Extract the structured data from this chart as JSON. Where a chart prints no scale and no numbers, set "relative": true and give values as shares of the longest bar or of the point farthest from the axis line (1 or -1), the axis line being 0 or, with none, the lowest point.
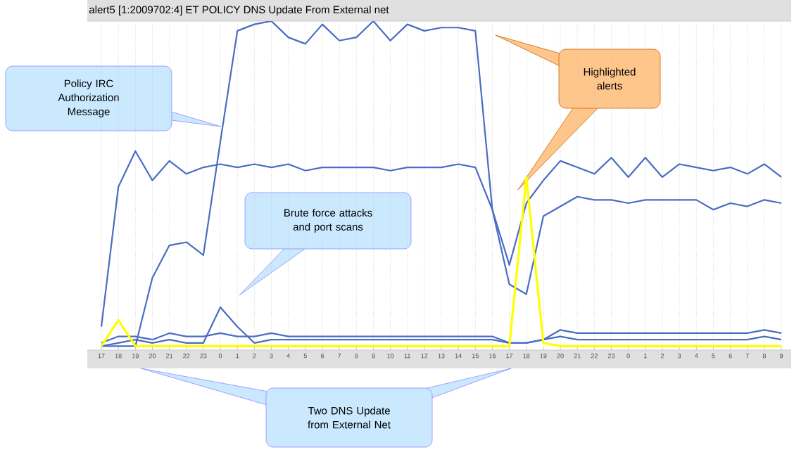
{
  "chart_data": {
    "type": "line",
    "title": "alert5  [1:2009702:4] ET POLICY DNS Update From External net",
    "categories": [
      "17",
      "18",
      "19",
      "20",
      "21",
      "22",
      "23",
      "0",
      "1",
      "2",
      "3",
      "4",
      "5",
      "6",
      "7",
      "8",
      "9",
      "10",
      "11",
      "12",
      "13",
      "14",
      "15",
      "16",
      "17",
      "18",
      "19",
      "20",
      "21",
      "22",
      "23",
      "0",
      "1",
      "2",
      "3",
      "4",
      "5",
      "6",
      "7",
      "8",
      "9"
    ],
    "relative": true,
    "grid": "x",
    "marker": "none",
    "series": [
      {
        "color": "#4a6cc4",
        "values": [
          0,
          0,
          0,
          0.21,
          0.31,
          0.32,
          0.28,
          0.63,
          0.97,
          0.99,
          1.0,
          0.95,
          0.93,
          0.99,
          0.94,
          0.95,
          1.0,
          0.94,
          0.99,
          0.97,
          0.98,
          0.98,
          0.97,
          0.42,
          0.19,
          0.16,
          0.4,
          0.43,
          0.46,
          0.45,
          0.45,
          0.44,
          0.45,
          0.45,
          0.45,
          0.45,
          0.42,
          0.44,
          0.43,
          0.45,
          0.44
        ]
      },
      {
        "color": "#4a6cc4",
        "values": [
          0.06,
          0.49,
          0.6,
          0.51,
          0.57,
          0.53,
          0.55,
          0.56,
          0.55,
          0.56,
          0.55,
          0.56,
          0.54,
          0.55,
          0.55,
          0.55,
          0.55,
          0.54,
          0.55,
          0.55,
          0.55,
          0.56,
          0.55,
          0.42,
          0.25,
          0.44,
          0.51,
          0.57,
          0.55,
          0.53,
          0.58,
          0.52,
          0.58,
          0.52,
          0.56,
          0.55,
          0.54,
          0.55,
          0.53,
          0.56,
          0.52
        ]
      },
      {
        "color": "#4a6cc4",
        "values": [
          0.01,
          0.03,
          0.03,
          0.02,
          0.04,
          0.03,
          0.03,
          0.04,
          0.03,
          0.03,
          0.04,
          0.03,
          0.03,
          0.03,
          0.03,
          0.03,
          0.03,
          0.03,
          0.03,
          0.03,
          0.03,
          0.03,
          0.03,
          0.03,
          0.01,
          0.01,
          0.02,
          0.05,
          0.04,
          0.04,
          0.04,
          0.04,
          0.04,
          0.04,
          0.04,
          0.04,
          0.04,
          0.04,
          0.04,
          0.05,
          0.04
        ]
      },
      {
        "color": "#4a6cc4",
        "values": [
          0,
          0.01,
          0.02,
          0.01,
          0.02,
          0.01,
          0.01,
          0.12,
          0.06,
          0.01,
          0.02,
          0.02,
          0.02,
          0.02,
          0.02,
          0.02,
          0.02,
          0.02,
          0.02,
          0.02,
          0.02,
          0.02,
          0.02,
          0.02,
          0.01,
          0.01,
          0.02,
          0.03,
          0.02,
          0.02,
          0.02,
          0.02,
          0.02,
          0.02,
          0.02,
          0.02,
          0.02,
          0.02,
          0.02,
          0.03,
          0.02
        ]
      },
      {
        "color": "#ffff00",
        "values": [
          0,
          0.08,
          0,
          0,
          0,
          0,
          0,
          0,
          0,
          0,
          0,
          0,
          0,
          0,
          0,
          0,
          0,
          0,
          0,
          0,
          0,
          0,
          0,
          0,
          0,
          0.52,
          0.01,
          0,
          0,
          0,
          0,
          0,
          0,
          0,
          0,
          0,
          0,
          0,
          0,
          0,
          0
        ]
      }
    ],
    "annotations": [
      "Policy IRC Authorization Message",
      "Brute force attacks and port scans",
      "Highlighted alerts",
      "Two DNS Update from External Net"
    ]
  }
}
